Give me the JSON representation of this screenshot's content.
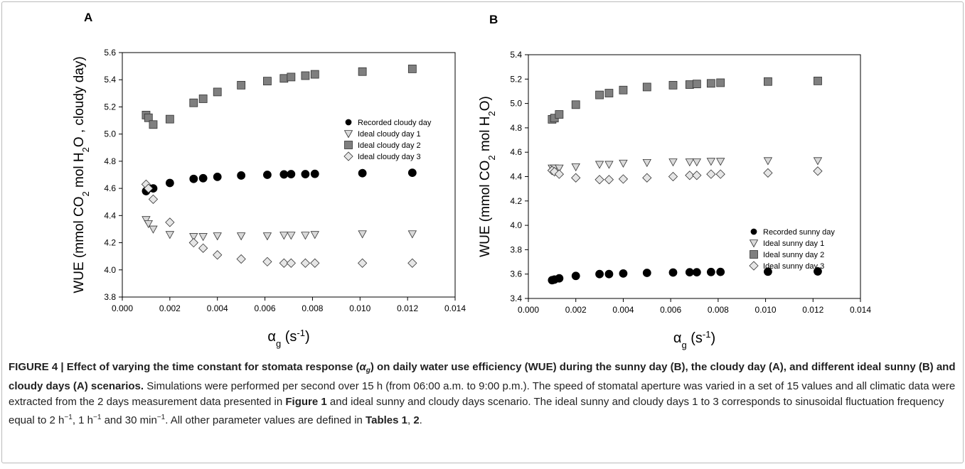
{
  "chart_data": [
    {
      "type": "scatter",
      "label": "A",
      "xlabel": [
        {
          "text": "α",
          "shift": "none"
        },
        {
          "text": "g",
          "shift": "sub"
        },
        {
          "text": " (s",
          "shift": "none"
        },
        {
          "text": "-1",
          "shift": "sup"
        },
        {
          "text": ")",
          "shift": "none"
        }
      ],
      "ylabel": [
        {
          "text": "WUE (mmol CO",
          "shift": "none"
        },
        {
          "text": "2",
          "shift": "sub"
        },
        {
          "text": " mol H",
          "shift": "none"
        },
        {
          "text": "2",
          "shift": "sub"
        },
        {
          "text": "O , cloudy day)",
          "shift": "none"
        }
      ],
      "x": [
        0.001,
        0.0011,
        0.0013,
        0.002,
        0.003,
        0.0034,
        0.004,
        0.005,
        0.0061,
        0.0068,
        0.0071,
        0.0077,
        0.0081,
        0.0101,
        0.0122
      ],
      "xlim": [
        0,
        0.014
      ],
      "xticks": [
        {
          "value": 0,
          "label": "0.000"
        },
        {
          "value": 0.002,
          "label": "0.002"
        },
        {
          "value": 0.004,
          "label": "0.004"
        },
        {
          "value": 0.006,
          "label": "0.006"
        },
        {
          "value": 0.008,
          "label": "0.008"
        },
        {
          "value": 0.01,
          "label": "0.010"
        },
        {
          "value": 0.012,
          "label": "0.012"
        },
        {
          "value": 0.014,
          "label": "0.014"
        }
      ],
      "ylim": [
        3.8,
        5.6
      ],
      "yticks": [
        3.8,
        {
          "value": 4,
          "label": "4.0"
        },
        4.2,
        4.4,
        4.6,
        4.8,
        {
          "value": 5,
          "label": "5.0"
        },
        5.2,
        5.4,
        5.6
      ],
      "legend_position": "right",
      "series": [
        {
          "name": "Recorded cloudy day",
          "color": "#000000",
          "marker": "circle",
          "values": [
            4.58,
            4.6,
            4.6,
            4.64,
            4.67,
            4.675,
            4.685,
            4.695,
            4.7,
            4.703,
            4.705,
            4.705,
            4.707,
            4.712,
            4.715
          ]
        },
        {
          "name": "Ideal cloudy day 1",
          "color": "#d9d9d9",
          "marker": "triangle-down",
          "values": [
            4.37,
            4.34,
            4.3,
            4.26,
            4.245,
            4.245,
            4.25,
            4.25,
            4.25,
            4.255,
            4.255,
            4.255,
            4.26,
            4.265,
            4.265
          ]
        },
        {
          "name": "Ideal cloudy day 2",
          "color": "#7f7f7f",
          "marker": "square",
          "values": [
            5.14,
            5.12,
            5.07,
            5.11,
            5.23,
            5.26,
            5.31,
            5.36,
            5.39,
            5.41,
            5.42,
            5.43,
            5.44,
            5.46,
            5.48
          ]
        },
        {
          "name": "Ideal cloudy day 3",
          "color": "#e6e6e6",
          "marker": "diamond",
          "values": [
            4.63,
            4.6,
            4.52,
            4.35,
            4.2,
            4.16,
            4.11,
            4.08,
            4.06,
            4.05,
            4.05,
            4.05,
            4.05,
            4.05,
            4.05
          ]
        }
      ]
    },
    {
      "type": "scatter",
      "label": "B",
      "xlabel": [
        {
          "text": "α",
          "shift": "none"
        },
        {
          "text": "g",
          "shift": "sub"
        },
        {
          "text": " (s",
          "shift": "none"
        },
        {
          "text": "-1",
          "shift": "sup"
        },
        {
          "text": ")",
          "shift": "none"
        }
      ],
      "ylabel": [
        {
          "text": "WUE (mmol CO",
          "shift": "none"
        },
        {
          "text": "2",
          "shift": "sub"
        },
        {
          "text": " mol H",
          "shift": "none"
        },
        {
          "text": "2",
          "shift": "sub"
        },
        {
          "text": "O)",
          "shift": "none"
        }
      ],
      "x": [
        0.001,
        0.0011,
        0.0013,
        0.002,
        0.003,
        0.0034,
        0.004,
        0.005,
        0.0061,
        0.0068,
        0.0071,
        0.0077,
        0.0081,
        0.0101,
        0.0122
      ],
      "xlim": [
        0,
        0.014
      ],
      "xticks": [
        {
          "value": 0,
          "label": "0.000"
        },
        {
          "value": 0.002,
          "label": "0.002"
        },
        {
          "value": 0.004,
          "label": "0.004"
        },
        {
          "value": 0.006,
          "label": "0.006"
        },
        {
          "value": 0.008,
          "label": "0.008"
        },
        {
          "value": 0.01,
          "label": "0.010"
        },
        {
          "value": 0.012,
          "label": "0.012"
        },
        {
          "value": 0.014,
          "label": "0.014"
        }
      ],
      "ylim": [
        3.4,
        5.4
      ],
      "yticks": [
        3.4,
        3.6,
        3.8,
        {
          "value": 4,
          "label": "4.0"
        },
        4.2,
        4.4,
        4.6,
        4.8,
        {
          "value": 5,
          "label": "5.0"
        },
        5.2,
        5.4
      ],
      "legend_position": "lower right",
      "series": [
        {
          "name": "Recorded sunny day",
          "color": "#000000",
          "marker": "circle",
          "values": [
            3.55,
            3.555,
            3.565,
            3.585,
            3.6,
            3.6,
            3.605,
            3.61,
            3.613,
            3.615,
            3.615,
            3.617,
            3.618,
            3.62,
            3.622
          ]
        },
        {
          "name": "Ideal sunny day 1",
          "color": "#d9d9d9",
          "marker": "triangle-down",
          "values": [
            4.47,
            4.47,
            4.47,
            4.48,
            4.5,
            4.5,
            4.51,
            4.515,
            4.52,
            4.52,
            4.52,
            4.525,
            4.525,
            4.53,
            4.53
          ]
        },
        {
          "name": "Ideal sunny day 2",
          "color": "#7f7f7f",
          "marker": "square",
          "values": [
            4.87,
            4.88,
            4.91,
            4.99,
            5.07,
            5.085,
            5.11,
            5.135,
            5.15,
            5.155,
            5.16,
            5.165,
            5.17,
            5.18,
            5.185
          ]
        },
        {
          "name": "Ideal sunny day 3",
          "color": "#e6e6e6",
          "marker": "diamond",
          "values": [
            4.45,
            4.44,
            4.42,
            4.39,
            4.375,
            4.375,
            4.38,
            4.39,
            4.4,
            4.41,
            4.41,
            4.42,
            4.42,
            4.43,
            4.445
          ]
        }
      ]
    }
  ],
  "caption": [
    {
      "text": "FIGURE 4 | Effect of varying the time constant for stomata response (",
      "style": "bold"
    },
    {
      "text": "α",
      "style": "bold-italic"
    },
    {
      "text": "g",
      "style": "bold-italic-sub"
    },
    {
      "text": ") on daily water use efficiency (WUE) during the sunny day (B), the cloudy day (A), and different ideal sunny (B) and cloudy days (A) scenarios.",
      "style": "bold"
    },
    {
      "text": " Simulations were performed per second over 15 h (from 06:00 a.m. to 9:00 p.m.). The speed of stomatal aperture was varied in a set of 15 values and all climatic data were extracted from the 2 days measurement data presented in ",
      "style": "normal"
    },
    {
      "text": "Figure 1",
      "style": "bold"
    },
    {
      "text": " and ideal sunny and cloudy days scenario. The ideal sunny and cloudy days 1 to 3 corresponds to sinusoidal fluctuation frequency equal to 2 h",
      "style": "normal"
    },
    {
      "text": "−1",
      "style": "sup"
    },
    {
      "text": ", 1 h",
      "style": "normal"
    },
    {
      "text": "−1",
      "style": "sup"
    },
    {
      "text": " and 30 min",
      "style": "normal"
    },
    {
      "text": "−1",
      "style": "sup"
    },
    {
      "text": ". All other parameter values are defined in ",
      "style": "normal"
    },
    {
      "text": "Tables 1",
      "style": "bold"
    },
    {
      "text": ", ",
      "style": "normal"
    },
    {
      "text": "2",
      "style": "bold"
    },
    {
      "text": ".",
      "style": "normal"
    }
  ]
}
